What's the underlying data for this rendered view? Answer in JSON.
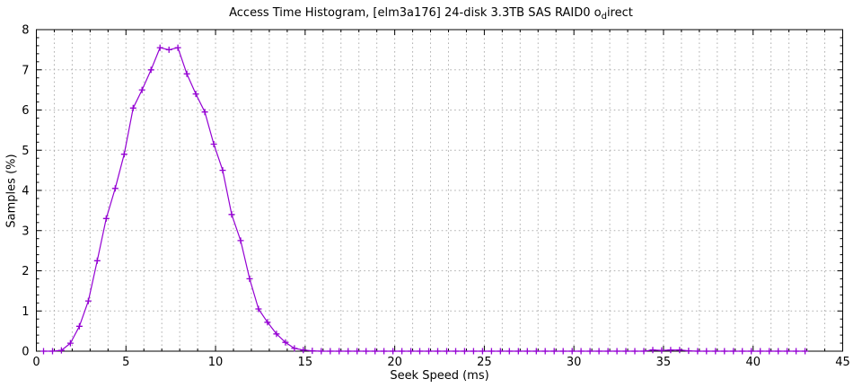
{
  "title": {
    "prefix": "Access Time Histogram, [elm3a176] 24-disk 3.3TB SAS RAID0 o",
    "sub": "d",
    "suffix": "irect"
  },
  "axes": {
    "xlabel": "Seek Speed (ms)",
    "ylabel": "Samples (%)"
  },
  "colors": {
    "line": "#9400d3",
    "grid": "#b0b0b0",
    "border": "#000000",
    "text": "#000000",
    "background": "#ffffff"
  },
  "chart_data": {
    "type": "line",
    "title": "Access Time Histogram, [elm3a176] 24-disk 3.3TB SAS RAID0 odirect",
    "xlabel": "Seek Speed (ms)",
    "ylabel": "Samples (%)",
    "xlim": [
      0,
      45
    ],
    "ylim": [
      0,
      8
    ],
    "x_major_ticks": [
      0,
      5,
      10,
      15,
      20,
      25,
      30,
      35,
      40,
      45
    ],
    "y_major_ticks": [
      0,
      1,
      2,
      3,
      4,
      5,
      6,
      7,
      8
    ],
    "x_minor_step": 1,
    "y_minor_step": 0.2,
    "grid": true,
    "legend": "none",
    "marker": "plus",
    "series": [
      {
        "name": "access-time-samples",
        "x": [
          0.4,
          0.9,
          1.4,
          1.9,
          2.4,
          2.9,
          3.4,
          3.9,
          4.4,
          4.9,
          5.4,
          5.9,
          6.4,
          6.9,
          7.4,
          7.9,
          8.4,
          8.9,
          9.4,
          9.9,
          10.4,
          10.9,
          11.4,
          11.9,
          12.4,
          12.9,
          13.4,
          13.9,
          14.4,
          14.9,
          15.4,
          15.9,
          16.4,
          16.9,
          17.4,
          17.9,
          18.4,
          18.9,
          19.4,
          19.9,
          20.4,
          20.9,
          21.4,
          21.9,
          22.4,
          22.9,
          23.4,
          23.9,
          24.4,
          24.9,
          25.4,
          25.9,
          26.4,
          26.9,
          27.4,
          27.9,
          28.4,
          28.9,
          29.4,
          29.9,
          30.4,
          30.9,
          31.4,
          31.9,
          32.4,
          32.9,
          33.4,
          33.9,
          34.4,
          34.9,
          35.4,
          35.9,
          36.4,
          36.9,
          37.4,
          37.9,
          38.4,
          38.9,
          39.4,
          39.9,
          40.4,
          40.9,
          41.4,
          41.9,
          42.4,
          42.9
        ],
        "y": [
          0,
          0,
          0.02,
          0.2,
          0.62,
          1.25,
          2.25,
          3.3,
          4.05,
          4.9,
          6.05,
          6.5,
          7.0,
          7.55,
          7.5,
          7.55,
          6.9,
          6.4,
          5.95,
          5.15,
          4.5,
          3.4,
          2.75,
          1.8,
          1.05,
          0.72,
          0.43,
          0.22,
          0.07,
          0.03,
          0.01,
          0,
          0,
          0,
          0,
          0,
          0,
          0,
          0,
          0,
          0,
          0,
          0,
          0,
          0,
          0,
          0,
          0,
          0,
          0,
          0,
          0,
          0,
          0,
          0,
          0,
          0,
          0,
          0,
          0,
          0,
          0,
          0,
          0,
          0,
          0,
          0,
          0,
          0.03,
          0.02,
          0.03,
          0.03,
          0.01,
          0,
          0,
          0,
          0,
          0,
          0,
          0,
          0,
          0,
          0,
          0,
          0,
          0
        ]
      }
    ]
  }
}
